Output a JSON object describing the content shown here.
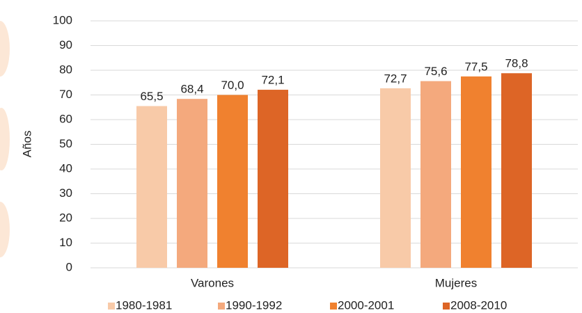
{
  "chart_data": {
    "type": "bar",
    "y_label": "Años",
    "categories": [
      "Varones",
      "Mujeres"
    ],
    "series": [
      {
        "name": "1980-1981",
        "color": "#f8caa8",
        "values": [
          65.5,
          72.7
        ],
        "value_labels": [
          "65,5",
          "72,7"
        ]
      },
      {
        "name": "1990-1992",
        "color": "#f4a97d",
        "values": [
          68.4,
          75.6
        ],
        "value_labels": [
          "68,4",
          "75,6"
        ]
      },
      {
        "name": "2000-2001",
        "color": "#f0812f",
        "values": [
          70.0,
          77.5
        ],
        "value_labels": [
          "70,0",
          "77,5"
        ]
      },
      {
        "name": "2008-2010",
        "color": "#dd6526",
        "values": [
          72.1,
          78.8
        ],
        "value_labels": [
          "72,1",
          "78,8"
        ]
      }
    ],
    "ylim": [
      0,
      100
    ],
    "yticks": [
      0,
      10,
      20,
      30,
      40,
      50,
      60,
      70,
      80,
      90,
      100
    ],
    "grid": true,
    "legend": "bottom"
  }
}
